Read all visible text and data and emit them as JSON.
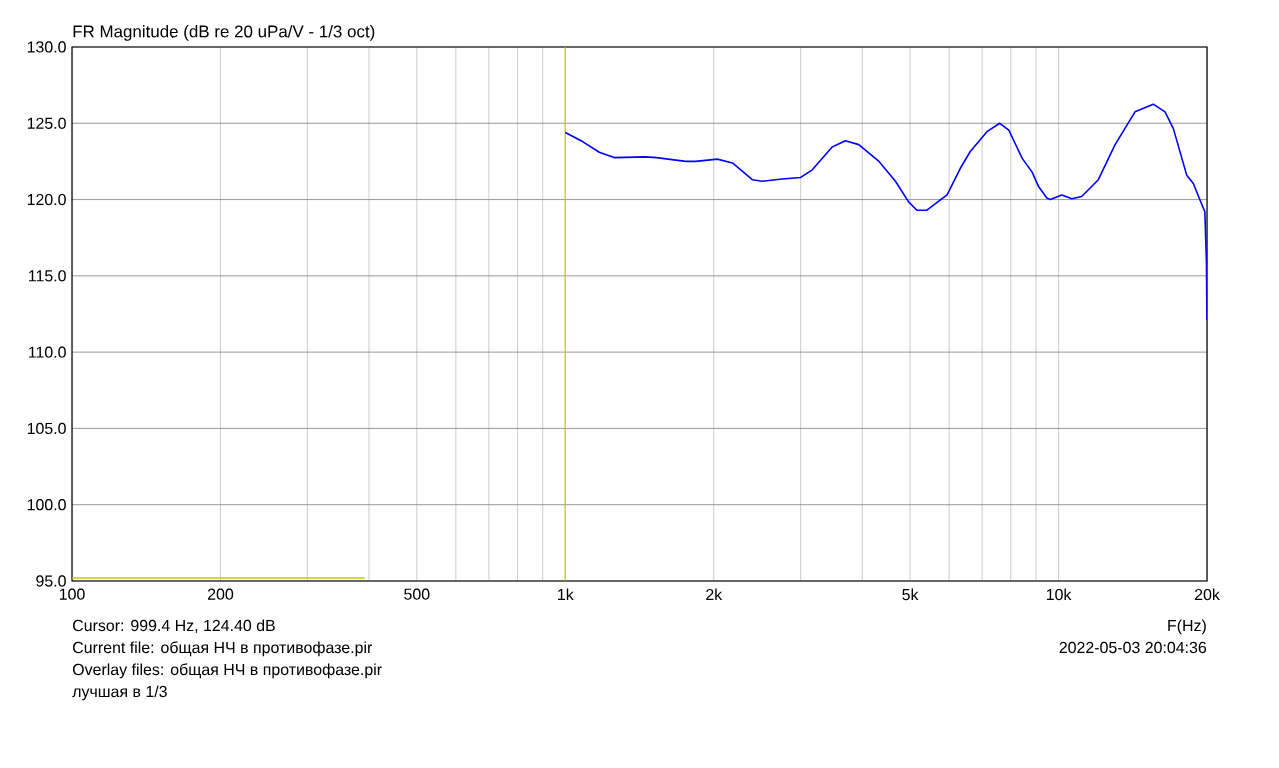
{
  "chart_data": {
    "type": "line",
    "title": "FR Magnitude (dB re 20 uPa/V - 1/3 oct)",
    "xlabel": "F(Hz)",
    "log": "x",
    "grid": true,
    "marker": "none",
    "line_style": "solid",
    "xlim": [
      100,
      20000
    ],
    "ylim": [
      95,
      130
    ],
    "xticks": [
      100,
      200,
      500,
      {
        "value": 1000,
        "label": "1k"
      },
      {
        "value": 2000,
        "label": "2k"
      },
      {
        "value": 5000,
        "label": "5k"
      },
      {
        "value": 10000,
        "label": "10k"
      },
      {
        "value": 20000,
        "label": "20k"
      }
    ],
    "yticks": [
      {
        "value": 95,
        "label": "95.0"
      },
      {
        "value": 100,
        "label": "100.0"
      },
      {
        "value": 105,
        "label": "105.0"
      },
      {
        "value": 110,
        "label": "110.0"
      },
      {
        "value": 115,
        "label": "115.0"
      },
      {
        "value": 120,
        "label": "120.0"
      },
      {
        "value": 125,
        "label": "125.0"
      },
      {
        "value": 130,
        "label": "130.0"
      }
    ],
    "ref_lines": [
      {
        "axis": "x",
        "value": 999.4,
        "color": "#c8c800"
      }
    ],
    "series": [
      {
        "color": "#0000ff",
        "x": [
          1000,
          1084,
          1172,
          1256,
          1456,
          1531,
          1755,
          1839,
          2033,
          2182,
          2394,
          2507,
          2754,
          3000,
          3168,
          3475,
          3697,
          3936,
          4325,
          4670,
          4966,
          5162,
          5408,
          5943,
          6322,
          6623,
          7159,
          7600,
          7928,
          8439,
          8838,
          9110,
          9465,
          9620,
          10155,
          10640,
          11140,
          12040,
          13020,
          14290,
          15560,
          16440,
          17090,
          18190,
          18760,
          19360,
          19800,
          19950,
          19990
        ],
        "values": [
          124.4,
          123.8,
          123.1,
          122.75,
          122.8,
          122.75,
          122.5,
          122.5,
          122.65,
          122.4,
          121.3,
          121.2,
          121.35,
          121.45,
          121.95,
          123.45,
          123.85,
          123.6,
          122.5,
          121.2,
          119.85,
          119.3,
          119.3,
          120.3,
          122.05,
          123.15,
          124.45,
          125.0,
          124.55,
          122.7,
          121.8,
          120.85,
          120.1,
          120.0,
          120.3,
          120.05,
          120.2,
          121.3,
          123.6,
          125.75,
          126.25,
          125.75,
          124.65,
          121.6,
          121.05,
          119.95,
          119.2,
          115.8,
          112.1
        ]
      },
      {
        "color": "#c8c800",
        "x": [
          100,
          392
        ],
        "values": [
          95.2,
          95.2
        ]
      }
    ],
    "annotations": [
      "Cursor: 999.4 Hz, 124.40 dB",
      "Current file: общая НЧ в противофазе.pir",
      "Overlay files: общая НЧ в противофазе.pir",
      "лучшая в 1/3",
      "2022-05-03  20:04:36"
    ]
  }
}
